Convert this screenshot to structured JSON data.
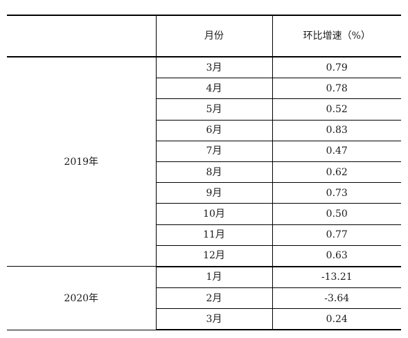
{
  "table": {
    "headers": {
      "year": "",
      "month": "月份",
      "rate": "环比增速（%）"
    },
    "groups": [
      {
        "year": "2019年",
        "rows": [
          {
            "month": "3月",
            "rate": "0.79"
          },
          {
            "month": "4月",
            "rate": "0.78"
          },
          {
            "month": "5月",
            "rate": "0.52"
          },
          {
            "month": "6月",
            "rate": "0.83"
          },
          {
            "month": "7月",
            "rate": "0.47"
          },
          {
            "month": "8月",
            "rate": "0.62"
          },
          {
            "month": "9月",
            "rate": "0.73"
          },
          {
            "month": "10月",
            "rate": "0.50"
          },
          {
            "month": "11月",
            "rate": "0.77"
          },
          {
            "month": "12月",
            "rate": "0.63"
          }
        ]
      },
      {
        "year": "2020年",
        "rows": [
          {
            "month": "1月",
            "rate": "-13.21"
          },
          {
            "month": "2月",
            "rate": "-3.64"
          },
          {
            "month": "3月",
            "rate": "0.24"
          }
        ]
      }
    ]
  }
}
